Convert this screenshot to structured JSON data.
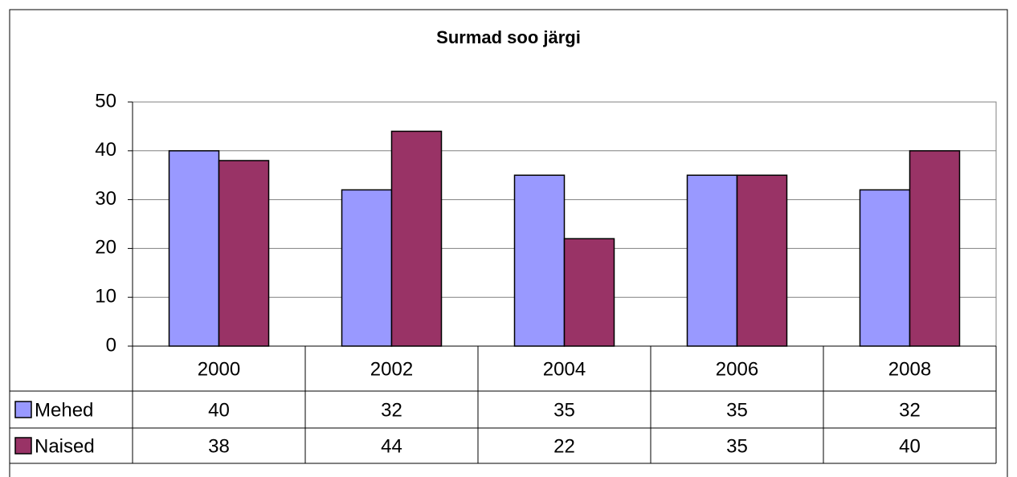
{
  "chart_data": {
    "type": "bar",
    "title": "Surmad soo järgi",
    "categories": [
      "2000",
      "2002",
      "2004",
      "2006",
      "2008"
    ],
    "series": [
      {
        "name": "Mehed",
        "color": "#9999ff",
        "values": [
          40,
          32,
          35,
          35,
          32
        ]
      },
      {
        "name": "Naised",
        "color": "#993366",
        "values": [
          38,
          44,
          22,
          35,
          40
        ]
      }
    ],
    "ylim": [
      0,
      50
    ],
    "yticks": [
      0,
      10,
      20,
      30,
      40,
      50
    ],
    "grid": true
  }
}
